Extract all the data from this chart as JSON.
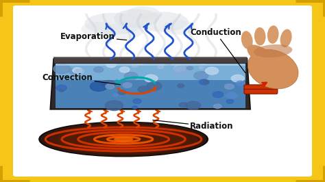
{
  "bg_color": "#f5c518",
  "inner_bg_color": "#ffffff",
  "labels": {
    "evaporation": "Evaporation",
    "convection": "Convection",
    "conduction": "Conduction",
    "radiation": "Radiation"
  },
  "arrow_color_blue": "#2255cc",
  "arrow_color_orange": "#dd4400",
  "arrow_color_teal": "#00aaaa",
  "water_color_top": "#8ab8e8",
  "water_color_bot": "#3a6ab0",
  "pot_color": "#3a3535",
  "pot_rim_color": "#5a5555",
  "stove_color": "#111111",
  "heating_color": "#cc3300",
  "heating_glow": "#8b2000",
  "cloud_color": "#dddddd",
  "cloud_edge": "#cccccc",
  "corner_color": "#d4a000",
  "font_size": 8.5,
  "font_color": "#111111",
  "steam_color": "#c0c8d8",
  "handle_color": "#cc4400",
  "hand_color": "#d4956a",
  "skin_dark": "#b07040"
}
